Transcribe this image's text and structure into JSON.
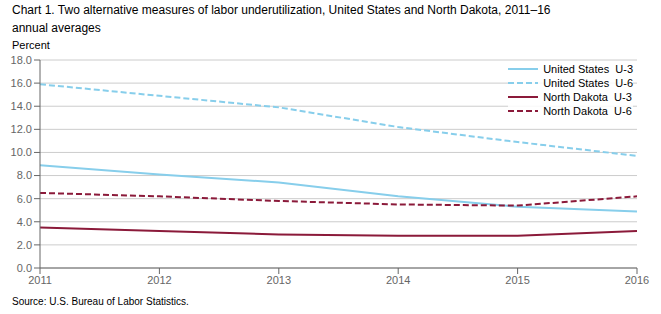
{
  "chart_data": {
    "type": "line",
    "title": "Chart 1. Two alternative measures of labor underutilization, United States and North Dakota, 2011–16",
    "subtitle": "annual averages",
    "ylabel": "Percent",
    "annotations": [
      "Source: U.S. Bureau of Labor Statistics."
    ],
    "x": [
      2011,
      2012,
      2013,
      2014,
      2015,
      2016
    ],
    "xlim": [
      2011,
      2016
    ],
    "xticks": [
      2011,
      2012,
      2013,
      2014,
      2015,
      2016
    ],
    "ylim": [
      0.0,
      18.0
    ],
    "yticks": [
      {
        "value": 0,
        "label": "0.0"
      },
      {
        "value": 2,
        "label": "2.0"
      },
      {
        "value": 4,
        "label": "4.0"
      },
      {
        "value": 6,
        "label": "6.0"
      },
      {
        "value": 8,
        "label": "8.0"
      },
      {
        "value": 10,
        "label": "10.0"
      },
      {
        "value": 12,
        "label": "12.0"
      },
      {
        "value": 14,
        "label": "14.0"
      },
      {
        "value": 16,
        "label": "16.0"
      },
      {
        "value": 18,
        "label": "18.0"
      }
    ],
    "grid": "y",
    "legend": "upper right",
    "series": [
      {
        "name": "United States  U-3",
        "color": "#87CEEB",
        "line_style": "solid",
        "values": [
          8.9,
          8.1,
          7.4,
          6.2,
          5.3,
          4.9
        ]
      },
      {
        "name": "United States  U-6",
        "color": "#87CEEB",
        "line_style": "dashed",
        "values": [
          15.9,
          14.9,
          13.9,
          12.2,
          10.9,
          9.7
        ]
      },
      {
        "name": "North Dakota  U-3",
        "color": "#8B1A3A",
        "line_style": "solid",
        "values": [
          3.5,
          3.2,
          2.9,
          2.8,
          2.8,
          3.2
        ]
      },
      {
        "name": "North Dakota  U-6",
        "color": "#8B1A3A",
        "line_style": "dashed",
        "values": [
          6.5,
          6.2,
          5.8,
          5.5,
          5.4,
          6.2
        ]
      }
    ]
  }
}
